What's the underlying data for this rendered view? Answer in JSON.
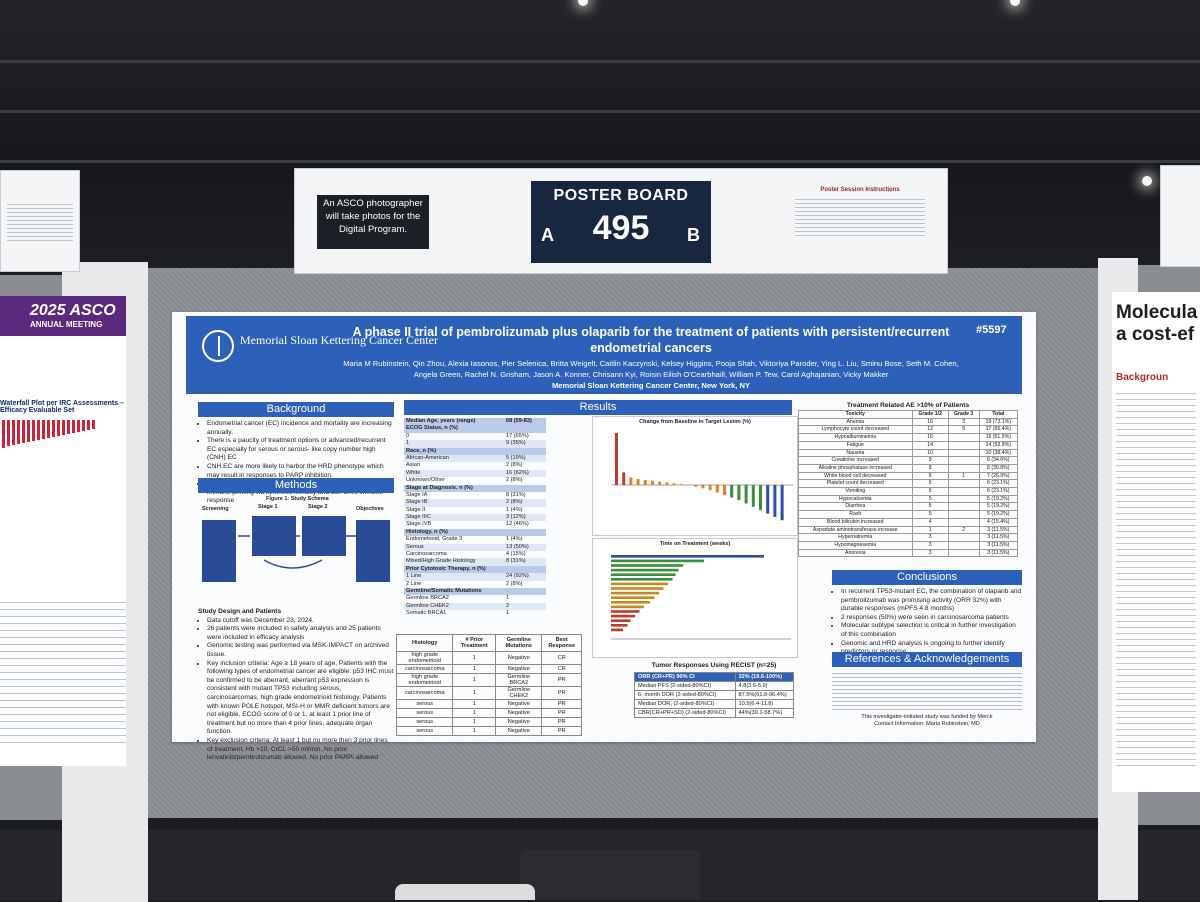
{
  "scene": {
    "photographer_notice": "An ASCO photographer will take photos for the Digital Program.",
    "board_title": "POSTER BOARD",
    "board_number": "495",
    "board_side_a": "A",
    "board_side_b": "B",
    "instructions_title": "Poster Session Instructions",
    "left_poster_brand": "2025 ASCO",
    "left_poster_meeting": "ANNUAL MEETING",
    "left_poster_fragment": "Waterfall Plot per IRC Assessments – Efficacy Evaluable Set",
    "right_poster_title_1": "Molecula",
    "right_poster_title_2": "a cost-ef",
    "right_poster_section": "Backgroun"
  },
  "poster": {
    "institution_logo": "Memorial Sloan Kettering Cancer Center",
    "title": "A phase II trial of pembrolizumab plus olaparib for the treatment of patients with persistent/recurrent endometrial cancers",
    "code": "#5597",
    "authors": "Maria M Rubinstein, Qin Zhou, Alexia Iasonos, Pier Selenica, Britta Weigelt, Caitlin Kaczynski, Kelsey Higgins, Pooja Shah, Viktoriya Paroder, Ying L. Liu, Sminu Bose, Seth M. Cohen, Angela Green, Rachel N. Grisham, Jason A. Konner, Chrisann Kyi, Roisin Eilish O'Cearbhaill, William P. Tew, Carol Aghajanian, Vicky Makker",
    "affiliation": "Memorial Sloan Kettering Cancer Center, New York, NY",
    "background_head": "Background",
    "background": [
      "Endometrial cancer (EC) incidence and mortality are increasing annually.",
      "There is a paucity of treatment options or advanced/recurrent EC especially for serous or serous- like copy number high (CNH) EC",
      "CNH EC are more likely to harbor the HRD phenotype which may result in responses to PARP inhibition.",
      "Significant DNA damage with PARP inhibitor can enhance immune priming via synthetic lethality and can drive immune response"
    ],
    "methods_head": "Methods",
    "figure1_title": "Figure 1: Study Schema",
    "schema_screening": "Screening",
    "schema_stage1": "Stage 1",
    "schema_stage2": "Stage 2",
    "schema_objectives": "Objectives",
    "study_design_head": "Study Design and Patients",
    "study_design": [
      "Data cutoff was December 23, 2024.",
      "26 patients were included in safety analysis and 25 patients were included in efficacy analysis",
      "Genomic testing was performed via MSK-IMPACT on archived tissue.",
      "Key inclusion criteria: Age ≥ 18 years of age, Patients with the following types of endometrial cancer are eligible: p53 IHC must be confirmed to be aberrant, aberrant p53 expression is consistent with mutant TP53 including serous, carcinosarcomas, high grade endometrioid histology. Patients with known POLE hotspot, MSI-H or MMR deficient tumors are not eligible, ECOG score of 0 or 1, at least 1 prior line of treatment but no more than 4 prior lines, adequate organ function.",
      "Key exclusion criteria: At least 1 but no more then 3 prior lines of treatment, Hb >10, CrCL >50 ml/min, No prior lenvatinib/pembrolizumab allowed, No prior PARPi allowed"
    ],
    "results_head": "Results",
    "demographics": [
      {
        "label": "Median Age, years (range)",
        "value": "68 (59-83)",
        "kind": "head"
      },
      {
        "label": "ECOG Status, n (%)",
        "value": "",
        "kind": "head"
      },
      {
        "label": "0",
        "value": "17 (65%)",
        "kind": "row"
      },
      {
        "label": "1",
        "value": "9 (35%)",
        "kind": "row"
      },
      {
        "label": "Race, n (%)",
        "value": "",
        "kind": "head"
      },
      {
        "label": "African-American",
        "value": "5 (19%)",
        "kind": "row"
      },
      {
        "label": "Asian",
        "value": "2 (8%)",
        "kind": "row"
      },
      {
        "label": "White",
        "value": "16 (62%)",
        "kind": "row"
      },
      {
        "label": "Unknown/Other",
        "value": "2 (8%)",
        "kind": "row"
      },
      {
        "label": "Stage at Diagnosis, n (%)",
        "value": "",
        "kind": "head"
      },
      {
        "label": "Stage IA",
        "value": "8 (31%)",
        "kind": "row"
      },
      {
        "label": "Stage IB",
        "value": "2 (8%)",
        "kind": "row"
      },
      {
        "label": "Stage II",
        "value": "1 (4%)",
        "kind": "row"
      },
      {
        "label": "Stage IIIC",
        "value": "3 (12%)",
        "kind": "row"
      },
      {
        "label": "Stage IVB",
        "value": "12 (46%)",
        "kind": "row"
      },
      {
        "label": "Histology, n (%)",
        "value": "",
        "kind": "head"
      },
      {
        "label": "Endometrioid, Grade 3",
        "value": "1 (4%)",
        "kind": "row"
      },
      {
        "label": "Serous",
        "value": "13 (50%)",
        "kind": "row"
      },
      {
        "label": "Carcinosarcoma",
        "value": "4 (15%)",
        "kind": "row"
      },
      {
        "label": "Mixed/High Grade Histology",
        "value": "8 (31%)",
        "kind": "row"
      },
      {
        "label": "Prior Cytotoxic Therapy, n (%)",
        "value": "",
        "kind": "head"
      },
      {
        "label": "1 Line",
        "value": "24 (92%)",
        "kind": "row"
      },
      {
        "label": "2 Line",
        "value": "2 (8%)",
        "kind": "row"
      },
      {
        "label": "Germline/Somatic Mutations",
        "value": "",
        "kind": "head"
      },
      {
        "label": "Germline BRCA2",
        "value": "1",
        "kind": "row"
      },
      {
        "label": "Germline CHEK2",
        "value": "2",
        "kind": "row"
      },
      {
        "label": "Somatic BRCA1",
        "value": "1",
        "kind": "row"
      }
    ],
    "histology_table": {
      "headers": [
        "Histology",
        "# Prior Treatment",
        "Germline Mutations",
        "Best Response"
      ],
      "rows": [
        [
          "high grade endometrioid",
          "1",
          "Negative",
          "CR"
        ],
        [
          "carcinosarcoma",
          "1",
          "Negative",
          "CR"
        ],
        [
          "high grade endometrioid",
          "1",
          "Germline BRCA2",
          "PR"
        ],
        [
          "carcinosarcoma",
          "1",
          "Germline CHEK2",
          "PR"
        ],
        [
          "serous",
          "1",
          "Negative",
          "PR"
        ],
        [
          "serous",
          "1",
          "Negative",
          "PR"
        ],
        [
          "serous",
          "1",
          "Negative",
          "PR"
        ],
        [
          "serous",
          "1",
          "Negative",
          "PR"
        ]
      ]
    },
    "waterfall_title": "Change from Baseline in Target Lesion (%)",
    "tot_title": "Time on Treatment (weeks)",
    "recist_title": "Tumor Responses Using RECIST (n=25)",
    "recist": [
      [
        "ORR (CR+PR) 90% CI",
        "32% (19.6-100%)"
      ],
      [
        "Median PFS (2-sided-80%CI)",
        "4.8(3.6-5.9)"
      ],
      [
        "6- month DOR (2-sided-80%CI)",
        "87.5%(61.8-96.4%)"
      ],
      [
        "Median DOR, (2-sided-80%CI)",
        "10.5(6.4-11.8)"
      ],
      [
        "CBR(CR+PR+SD) (2-sided-80%CI)",
        "44%(30.1-58.7%)"
      ]
    ],
    "ae_title": "Treatment Related AE >10% of Patients",
    "ae_headers": [
      "Toxicity",
      "Grade 1/2",
      "Grade 3",
      "Total"
    ],
    "ae_rows": [
      [
        "Anemia",
        "16",
        "3",
        "19 (73.1%)"
      ],
      [
        "Lymphocyte count decreased",
        "12",
        "5",
        "17 (65.4%)"
      ],
      [
        "Hypoalbuminemia",
        "16",
        "",
        "16 (61.5%)"
      ],
      [
        "Fatigue",
        "14",
        "",
        "14 (53.8%)"
      ],
      [
        "Nausea",
        "10",
        "",
        "10 (38.4%)"
      ],
      [
        "Creatinine increased",
        "9",
        "",
        "9 (34.6%)"
      ],
      [
        "Alkaline phosphatase increased",
        "8",
        "",
        "8 (30.8%)"
      ],
      [
        "White blood cell decreased",
        "6",
        "1",
        "7 (26.9%)"
      ],
      [
        "Platelet count decreased",
        "6",
        "",
        "6 (23.1%)"
      ],
      [
        "Vomiting",
        "6",
        "",
        "6 (23.1%)"
      ],
      [
        "Hypocalcemia",
        "5",
        "",
        "5 (19.2%)"
      ],
      [
        "Diarrhea",
        "5",
        "",
        "5 (19.2%)"
      ],
      [
        "Rash",
        "5",
        "",
        "5 (19.2%)"
      ],
      [
        "Blood bilirubin increased",
        "4",
        "",
        "4 (15.4%)"
      ],
      [
        "Aspartate aminotransferase increase",
        "1",
        "2",
        "3 (11.5%)"
      ],
      [
        "Hypernatremia",
        "3",
        "",
        "3 (11.5%)"
      ],
      [
        "Hypomagnesemia",
        "3",
        "",
        "3 (11.5%)"
      ],
      [
        "Anorexia",
        "3",
        "",
        "3 (11.5%)"
      ]
    ],
    "conclusions_head": "Conclusions",
    "conclusions": [
      "In recurrent TP53-mutant EC, the combination of olaparib and pembrolizumab was promising activity (ORR 32%) with durable responses (mPFS 4.8 months)",
      "2 responses (50%) were seen in carcinosarcoma patients",
      "Molecular subtype selection is critical in further investigation of this combination",
      "Genomic and HRD analysis is ongoing to further identify predictors or response."
    ],
    "references_head": "References & Acknowledgements",
    "funding": "This investigator-initiated study was funded by Merck",
    "contact": "Contact Information: Maria Rubinstein, MD"
  },
  "colors": {
    "msk_blue": "#2d61b9",
    "board_navy": "#19263f",
    "asco_purple": "#5b2a7c"
  }
}
